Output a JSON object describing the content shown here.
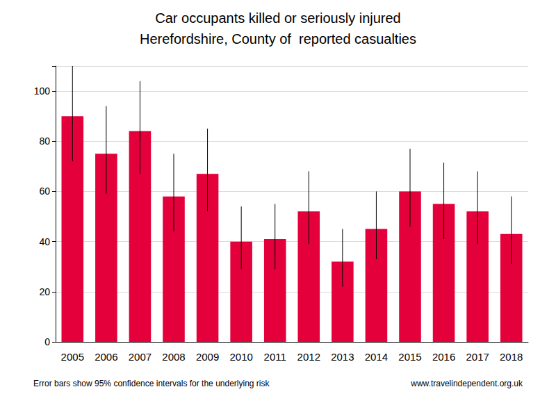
{
  "chart_data": {
    "type": "bar",
    "title": "Car occupants killed or seriously injured\nHerefordshire, County of  reported casualties",
    "categories": [
      "2005",
      "2006",
      "2007",
      "2008",
      "2009",
      "2010",
      "2011",
      "2012",
      "2013",
      "2014",
      "2015",
      "2016",
      "2017",
      "2018"
    ],
    "values": [
      90,
      75,
      84,
      58,
      67,
      40,
      41,
      52,
      32,
      45,
      60,
      55,
      52,
      43
    ],
    "error_bars": {
      "lower": [
        72,
        59,
        67,
        44,
        52,
        29,
        29,
        39,
        22,
        33,
        46,
        41,
        39,
        31
      ],
      "upper": [
        111,
        94,
        104,
        75,
        85,
        54,
        55,
        68,
        45,
        60,
        77,
        71.5,
        68,
        58
      ]
    },
    "color": "#e4003b",
    "ylim": [
      0,
      110
    ],
    "yticks": [
      0,
      20,
      40,
      60,
      80,
      100
    ],
    "grid": true,
    "annotations": [
      "Error bars show 95% confidence intervals for the underlying risk",
      "www.travelindependent.org.uk"
    ]
  }
}
